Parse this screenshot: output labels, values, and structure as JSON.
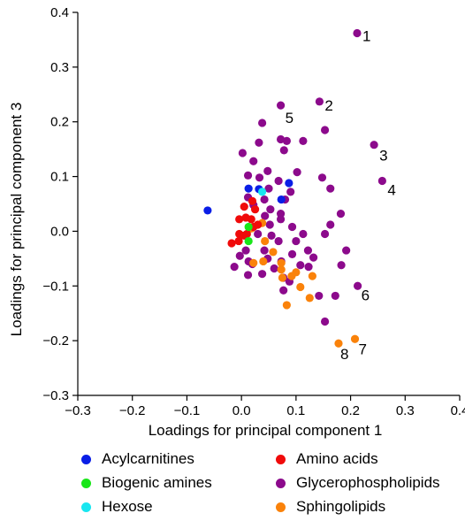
{
  "chart_data": {
    "type": "scatter",
    "title": "",
    "xlabel": "Loadings for principal component 1",
    "ylabel": "Loadings for principal component 3",
    "xlim": [
      -0.3,
      0.4
    ],
    "ylim": [
      -0.3,
      0.4
    ],
    "xticks": [
      -0.3,
      -0.2,
      -0.1,
      0.0,
      0.1,
      0.2,
      0.3,
      0.4
    ],
    "yticks": [
      -0.3,
      -0.2,
      -0.1,
      0.0,
      0.1,
      0.2,
      0.3,
      0.4
    ],
    "xtick_labels": [
      "−0.3",
      "−0.2",
      "−0.1",
      "0.0",
      "0.1",
      "0.2",
      "0.3",
      "0.4"
    ],
    "ytick_labels": [
      "−0.3",
      "−0.2",
      "−0.1",
      "0.0",
      "0.1",
      "0.2",
      "0.3",
      "0.4"
    ],
    "grid": false,
    "legend_position": "bottom",
    "series": [
      {
        "name": "Acylcarnitines",
        "color": "#0a1ee6",
        "points": [
          [
            -0.062,
            0.038
          ],
          [
            0.013,
            0.078
          ],
          [
            0.032,
            0.077
          ],
          [
            0.087,
            0.088
          ],
          [
            0.073,
            0.058
          ]
        ]
      },
      {
        "name": "Amino acids",
        "color": "#f00a0a",
        "points": [
          [
            -0.004,
            0.022
          ],
          [
            0.008,
            0.025
          ],
          [
            0.018,
            0.022
          ],
          [
            0.025,
            0.04
          ],
          [
            0.02,
            0.055
          ],
          [
            0.005,
            0.045
          ],
          [
            -0.004,
            -0.005
          ],
          [
            0.01,
            -0.005
          ],
          [
            -0.018,
            -0.022
          ],
          [
            -0.005,
            -0.018
          ],
          [
            0.005,
            -0.008
          ],
          [
            0.022,
            0.008
          ],
          [
            0.03,
            0.012
          ]
        ]
      },
      {
        "name": "Biogenic amines",
        "color": "#19e619",
        "points": [
          [
            0.013,
            0.008
          ],
          [
            0.013,
            -0.018
          ]
        ]
      },
      {
        "name": "Hexose",
        "color": "#19e6f0",
        "points": [
          [
            0.038,
            0.072
          ]
        ]
      },
      {
        "name": "Glycerophospholipids",
        "color": "#8c0a8c",
        "points": [
          [
            0.212,
            0.362
          ],
          [
            0.143,
            0.237
          ],
          [
            0.072,
            0.23
          ],
          [
            0.038,
            0.198
          ],
          [
            0.153,
            0.185
          ],
          [
            0.113,
            0.165
          ],
          [
            0.083,
            0.165
          ],
          [
            0.072,
            0.168
          ],
          [
            0.032,
            0.162
          ],
          [
            0.243,
            0.158
          ],
          [
            0.002,
            0.143
          ],
          [
            0.078,
            0.148
          ],
          [
            0.022,
            0.128
          ],
          [
            0.102,
            0.108
          ],
          [
            0.258,
            0.092
          ],
          [
            0.148,
            0.098
          ],
          [
            0.012,
            0.102
          ],
          [
            0.048,
            0.11
          ],
          [
            0.068,
            0.092
          ],
          [
            0.033,
            0.098
          ],
          [
            0.09,
            0.072
          ],
          [
            0.163,
            0.078
          ],
          [
            0.012,
            0.062
          ],
          [
            0.05,
            0.078
          ],
          [
            0.08,
            0.058
          ],
          [
            0.042,
            0.058
          ],
          [
            0.022,
            0.048
          ],
          [
            0.053,
            0.04
          ],
          [
            0.072,
            0.032
          ],
          [
            0.043,
            0.028
          ],
          [
            0.182,
            0.032
          ],
          [
            0.163,
            0.012
          ],
          [
            0.052,
            0.012
          ],
          [
            0.072,
            0.022
          ],
          [
            0.093,
            0.008
          ],
          [
            0.03,
            -0.005
          ],
          [
            0.055,
            -0.008
          ],
          [
            0.113,
            -0.005
          ],
          [
            0.153,
            -0.005
          ],
          [
            0.068,
            -0.018
          ],
          [
            0.1,
            -0.018
          ],
          [
            0.122,
            -0.035
          ],
          [
            0.192,
            -0.035
          ],
          [
            0.008,
            -0.035
          ],
          [
            -0.003,
            -0.045
          ],
          [
            0.042,
            -0.035
          ],
          [
            0.093,
            -0.042
          ],
          [
            0.132,
            -0.048
          ],
          [
            0.013,
            -0.055
          ],
          [
            0.048,
            -0.05
          ],
          [
            0.073,
            -0.055
          ],
          [
            0.108,
            -0.062
          ],
          [
            0.183,
            -0.062
          ],
          [
            -0.013,
            -0.065
          ],
          [
            0.02,
            -0.06
          ],
          [
            0.06,
            -0.068
          ],
          [
            0.123,
            -0.065
          ],
          [
            0.038,
            -0.078
          ],
          [
            0.077,
            -0.085
          ],
          [
            0.088,
            -0.092
          ],
          [
            0.012,
            -0.08
          ],
          [
            0.213,
            -0.1
          ],
          [
            0.172,
            -0.118
          ],
          [
            0.077,
            -0.108
          ],
          [
            0.142,
            -0.118
          ],
          [
            0.153,
            -0.165
          ]
        ]
      },
      {
        "name": "Sphingolipids",
        "color": "#fa820a",
        "points": [
          [
            0.208,
            -0.197
          ],
          [
            0.178,
            -0.205
          ],
          [
            0.083,
            -0.135
          ],
          [
            0.125,
            -0.122
          ],
          [
            0.13,
            -0.082
          ],
          [
            0.1,
            -0.075
          ],
          [
            0.075,
            -0.085
          ],
          [
            0.073,
            -0.058
          ],
          [
            0.058,
            -0.038
          ],
          [
            0.04,
            -0.055
          ],
          [
            0.073,
            -0.07
          ],
          [
            0.108,
            -0.102
          ],
          [
            0.092,
            -0.082
          ],
          [
            0.022,
            -0.058
          ],
          [
            0.043,
            -0.018
          ],
          [
            0.038,
            0.015
          ],
          [
            0.018,
            0.005
          ]
        ]
      }
    ],
    "annotations": [
      {
        "text": "1",
        "x": 0.212,
        "y": 0.362
      },
      {
        "text": "2",
        "x": 0.143,
        "y": 0.237
      },
      {
        "text": "3",
        "x": 0.243,
        "y": 0.158
      },
      {
        "text": "4",
        "x": 0.258,
        "y": 0.092
      },
      {
        "text": "5",
        "x": 0.072,
        "y": 0.23
      },
      {
        "text": "6",
        "x": 0.213,
        "y": -0.1
      },
      {
        "text": "7",
        "x": 0.208,
        "y": -0.197
      },
      {
        "text": "8",
        "x": 0.178,
        "y": -0.205
      }
    ]
  },
  "legend": {
    "items": [
      {
        "label": "Acylcarnitines",
        "color": "#0a1ee6"
      },
      {
        "label": "Amino acids",
        "color": "#f00a0a"
      },
      {
        "label": "Biogenic amines",
        "color": "#19e619"
      },
      {
        "label": "Glycerophospholipids",
        "color": "#8c0a8c"
      },
      {
        "label": "Hexose",
        "color": "#19e6f0"
      },
      {
        "label": "Sphingolipids",
        "color": "#fa820a"
      }
    ]
  }
}
